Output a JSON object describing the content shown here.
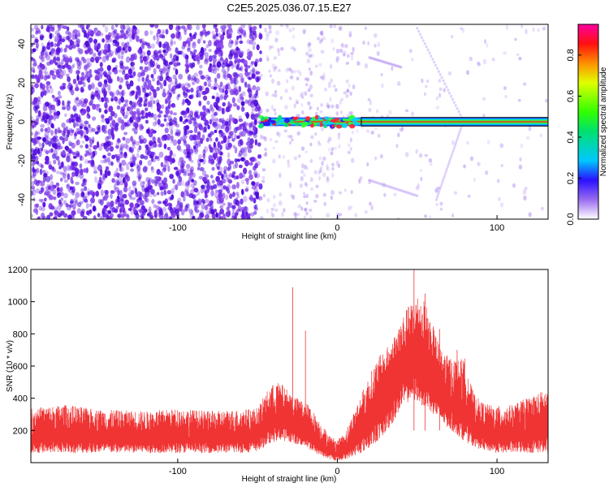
{
  "title": "C2E5.2025.036.07.15.E27",
  "colors": {
    "series": "#f03434",
    "dots": "#6a1fe0",
    "axis": "#000000"
  },
  "chart_data": [
    {
      "type": "heatmap",
      "xlabel": "Height of straight line (km)",
      "ylabel": "Frequency (Hz)",
      "xlim": [
        -192,
        132
      ],
      "ylim": [
        -50,
        50
      ],
      "xticks": [
        -100,
        0,
        100
      ],
      "yticks": [
        -40,
        -20,
        0,
        20,
        40
      ],
      "colorbar": {
        "label": "Normalized spectral amplitude",
        "range": [
          0,
          0.95
        ],
        "ticks": [
          0.0,
          0.2,
          0.4,
          0.6,
          0.8
        ],
        "tick_labels": [
          "0.0",
          "0.2",
          "0.4",
          "0.6",
          "0.8"
        ]
      },
      "dominant_band": {
        "x_start": -48,
        "x_end": 132,
        "frequency": 0
      }
    },
    {
      "type": "line",
      "xlabel": "Height of straight line (km)",
      "ylabel": "SNR (10 * v/v)",
      "xlim": [
        -192,
        132
      ],
      "ylim": [
        0,
        1200
      ],
      "xticks": [
        -100,
        0,
        100
      ],
      "yticks": [
        200,
        400,
        600,
        800,
        1000,
        1200
      ],
      "envelope": {
        "x": [
          -192,
          -170,
          -150,
          -120,
          -100,
          -80,
          -60,
          -50,
          -42,
          -36,
          -30,
          -25,
          -20,
          -15,
          -10,
          -5,
          0,
          5,
          10,
          15,
          20,
          25,
          30,
          35,
          40,
          45,
          50,
          55,
          60,
          65,
          70,
          75,
          80,
          85,
          90,
          95,
          100,
          110,
          120,
          132
        ],
        "upper": [
          340,
          360,
          330,
          320,
          335,
          320,
          330,
          340,
          480,
          500,
          440,
          400,
          380,
          320,
          240,
          170,
          140,
          190,
          310,
          430,
          540,
          650,
          700,
          780,
          900,
          980,
          1050,
          1000,
          850,
          700,
          660,
          640,
          650,
          440,
          380,
          360,
          350,
          360,
          410,
          460
        ],
        "lower": [
          60,
          60,
          60,
          60,
          60,
          60,
          60,
          70,
          120,
          140,
          130,
          110,
          100,
          60,
          40,
          20,
          10,
          20,
          40,
          60,
          90,
          130,
          180,
          250,
          340,
          380,
          380,
          340,
          300,
          250,
          210,
          170,
          130,
          100,
          80,
          70,
          60,
          60,
          60,
          60
        ]
      }
    }
  ]
}
